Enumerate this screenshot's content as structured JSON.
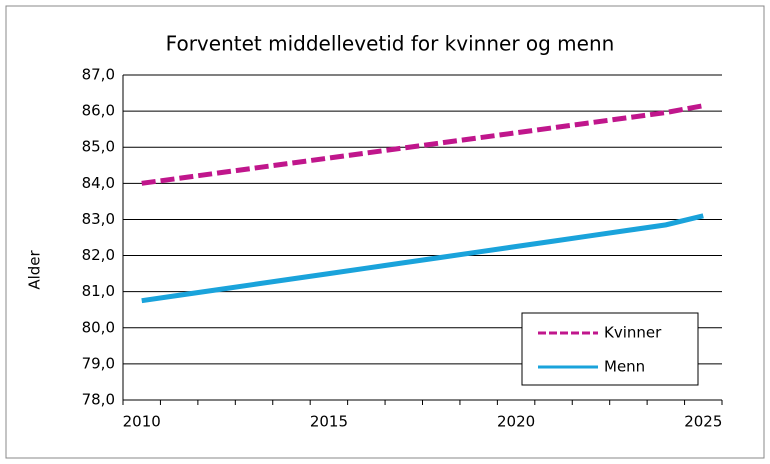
{
  "chart_data": {
    "type": "line",
    "title": "Forventet middellevetid for kvinner og menn",
    "y_label": "Alder",
    "categories": [
      "2010",
      null,
      null,
      null,
      null,
      "2015",
      null,
      null,
      null,
      null,
      "2020",
      null,
      null,
      null,
      null,
      "2025"
    ],
    "series": [
      {
        "name": "Kvinner",
        "color": "#c0168c",
        "dashed": true,
        "values": [
          84.0,
          84.14,
          84.28,
          84.42,
          84.56,
          84.7,
          84.84,
          84.98,
          85.12,
          85.26,
          85.4,
          85.54,
          85.68,
          85.82,
          85.96,
          86.15
        ]
      },
      {
        "name": "Menn",
        "color": "#1aa3db",
        "dashed": false,
        "values": [
          80.75,
          80.9,
          81.05,
          81.2,
          81.35,
          81.5,
          81.65,
          81.8,
          81.95,
          82.1,
          82.25,
          82.4,
          82.55,
          82.7,
          82.85,
          83.1
        ]
      }
    ],
    "ylim": [
      78,
      87
    ],
    "yticks": [
      {
        "value": 78,
        "label": "78,0"
      },
      {
        "value": 79,
        "label": "79,0"
      },
      {
        "value": 80,
        "label": "80,0"
      },
      {
        "value": 81,
        "label": "81,0"
      },
      {
        "value": 82,
        "label": "82,0"
      },
      {
        "value": 83,
        "label": "83,0"
      },
      {
        "value": 84,
        "label": "84,0"
      },
      {
        "value": 85,
        "label": "85,0"
      },
      {
        "value": 86,
        "label": "86,0"
      },
      {
        "value": 87,
        "label": "87,0"
      }
    ],
    "grid": true,
    "legend": "lower-right"
  }
}
